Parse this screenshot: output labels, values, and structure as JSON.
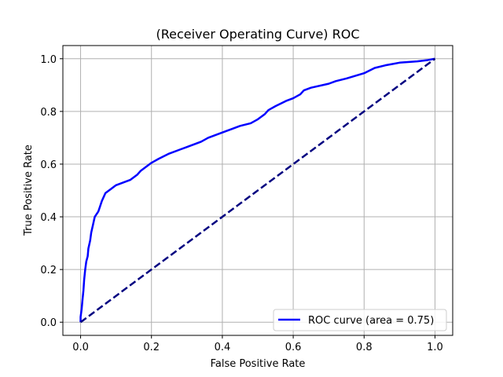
{
  "chart_data": {
    "type": "line",
    "title": "(Receiver Operating Curve) ROC",
    "xlabel": "False Positive Rate",
    "ylabel": "True Positive Rate",
    "xlim": [
      -0.05,
      1.05
    ],
    "ylim": [
      -0.05,
      1.05
    ],
    "xticks": [
      "0.0",
      "0.2",
      "0.4",
      "0.6",
      "0.8",
      "1.0"
    ],
    "yticks": [
      "0.0",
      "0.2",
      "0.4",
      "0.6",
      "0.8",
      "1.0"
    ],
    "grid": true,
    "legend_position": "lower-right",
    "series": [
      {
        "name": "ROC curve (area = 0.75)",
        "color": "#0000ff",
        "style": "solid",
        "x": [
          0.0,
          0.0,
          0.003,
          0.005,
          0.008,
          0.01,
          0.013,
          0.016,
          0.02,
          0.022,
          0.027,
          0.03,
          0.035,
          0.04,
          0.045,
          0.05,
          0.055,
          0.06,
          0.07,
          0.08,
          0.085,
          0.09,
          0.1,
          0.12,
          0.14,
          0.16,
          0.17,
          0.18,
          0.2,
          0.22,
          0.25,
          0.28,
          0.3,
          0.34,
          0.36,
          0.4,
          0.43,
          0.45,
          0.48,
          0.5,
          0.52,
          0.53,
          0.55,
          0.58,
          0.6,
          0.62,
          0.63,
          0.65,
          0.7,
          0.72,
          0.75,
          0.8,
          0.83,
          0.86,
          0.88,
          0.9,
          0.95,
          0.98,
          1.0
        ],
        "y": [
          0.0,
          0.02,
          0.05,
          0.08,
          0.12,
          0.16,
          0.2,
          0.23,
          0.25,
          0.28,
          0.31,
          0.34,
          0.37,
          0.4,
          0.41,
          0.42,
          0.44,
          0.46,
          0.49,
          0.5,
          0.505,
          0.51,
          0.52,
          0.53,
          0.54,
          0.56,
          0.575,
          0.585,
          0.605,
          0.62,
          0.64,
          0.655,
          0.665,
          0.685,
          0.7,
          0.72,
          0.735,
          0.745,
          0.755,
          0.77,
          0.79,
          0.805,
          0.82,
          0.84,
          0.85,
          0.865,
          0.88,
          0.89,
          0.905,
          0.915,
          0.925,
          0.945,
          0.965,
          0.975,
          0.98,
          0.985,
          0.99,
          0.995,
          1.0
        ]
      },
      {
        "name": "",
        "color": "#000080",
        "style": "dashed",
        "x": [
          0,
          1
        ],
        "y": [
          0,
          1
        ]
      }
    ]
  }
}
